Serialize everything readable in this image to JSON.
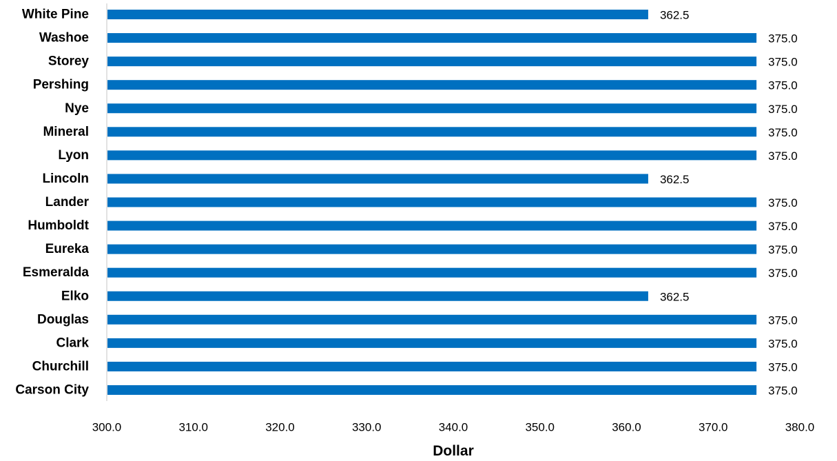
{
  "colors": {
    "bar": "#0070C0",
    "axis": "#D9D9D9",
    "text": "#000000"
  },
  "chart_data": {
    "type": "bar",
    "orientation": "horizontal",
    "title": "",
    "xlabel": "Dollar",
    "ylabel": "",
    "xlim": [
      300,
      380
    ],
    "x_ticks": [
      300,
      310,
      320,
      330,
      340,
      350,
      360,
      370,
      380
    ],
    "x_tick_labels": [
      "300.0",
      "310.0",
      "320.0",
      "330.0",
      "340.0",
      "350.0",
      "360.0",
      "370.0",
      "380.0"
    ],
    "grid": false,
    "legend": "none",
    "categories": [
      "White Pine",
      "Washoe",
      "Storey",
      "Pershing",
      "Nye",
      "Mineral",
      "Lyon",
      "Lincoln",
      "Lander",
      "Humboldt",
      "Eureka",
      "Esmeralda",
      "Elko",
      "Douglas",
      "Clark",
      "Churchill",
      "Carson City"
    ],
    "values": [
      362.5,
      375.0,
      375.0,
      375.0,
      375.0,
      375.0,
      375.0,
      362.5,
      375.0,
      375.0,
      375.0,
      375.0,
      362.5,
      375.0,
      375.0,
      375.0,
      375.0
    ],
    "value_labels": [
      "362.5",
      "375.0",
      "375.0",
      "375.0",
      "375.0",
      "375.0",
      "375.0",
      "362.5",
      "375.0",
      "375.0",
      "375.0",
      "375.0",
      "362.5",
      "375.0",
      "375.0",
      "375.0",
      "375.0"
    ]
  }
}
